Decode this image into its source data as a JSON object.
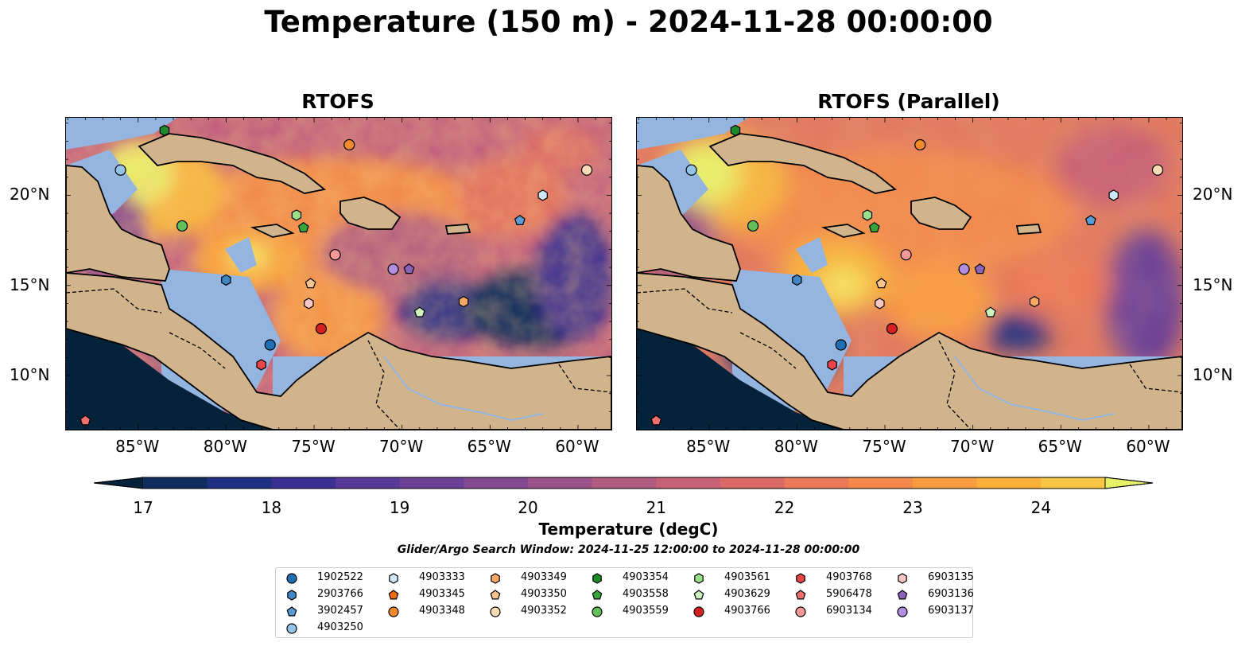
{
  "title": "Temperature (150 m) - 2024-11-28 00:00:00",
  "panels": [
    {
      "title": "RTOFS"
    },
    {
      "title": "RTOFS (Parallel)"
    }
  ],
  "x_ticks": [
    "85°W",
    "80°W",
    "75°W",
    "70°W",
    "65°W",
    "60°W"
  ],
  "y_ticks": [
    "20°N",
    "15°N",
    "10°N"
  ],
  "colorbar": {
    "label": "Temperature (degC)",
    "ticks": [
      "17",
      "18",
      "19",
      "20",
      "21",
      "22",
      "23",
      "24"
    ],
    "colors": [
      "#04233a",
      "#0f2c5e",
      "#1f2f84",
      "#3a2f92",
      "#573a97",
      "#6c4096",
      "#844a91",
      "#9a5389",
      "#b05b80",
      "#c66176",
      "#d96a68",
      "#ea7959",
      "#f4894b",
      "#f99b40",
      "#fbb03d",
      "#f8c646",
      "#e8f06a"
    ]
  },
  "search_window": "Glider/Argo Search Window: 2024-11-25 12:00:00 to 2024-11-28 00:00:00",
  "legend": [
    {
      "id": "1902522",
      "shape": "circle",
      "color": "#1f6fb4"
    },
    {
      "id": "2903766",
      "shape": "hexagon",
      "color": "#3f86c4"
    },
    {
      "id": "3902457",
      "shape": "pentagon",
      "color": "#5a9cd6"
    },
    {
      "id": "4903250",
      "shape": "circle",
      "color": "#94c4ea"
    },
    {
      "id": "4903333",
      "shape": "hexagon",
      "color": "#cfe8f8"
    },
    {
      "id": "4903345",
      "shape": "pentagon",
      "color": "#f06a10"
    },
    {
      "id": "4903348",
      "shape": "circle",
      "color": "#f58a2c"
    },
    {
      "id": "4903349",
      "shape": "hexagon",
      "color": "#f6a864"
    },
    {
      "id": "4903350",
      "shape": "pentagon",
      "color": "#f9c48f"
    },
    {
      "id": "4903352",
      "shape": "circle",
      "color": "#fcdcb6"
    },
    {
      "id": "4903354",
      "shape": "hexagon",
      "color": "#1e8a2a"
    },
    {
      "id": "4903558",
      "shape": "pentagon",
      "color": "#36a53a"
    },
    {
      "id": "4903559",
      "shape": "circle",
      "color": "#62c05a"
    },
    {
      "id": "4903561",
      "shape": "hexagon",
      "color": "#9be08c"
    },
    {
      "id": "4903629",
      "shape": "pentagon",
      "color": "#cdf2bf"
    },
    {
      "id": "4903766",
      "shape": "circle",
      "color": "#d62020"
    },
    {
      "id": "4903768",
      "shape": "hexagon",
      "color": "#e8454a"
    },
    {
      "id": "5906478",
      "shape": "pentagon",
      "color": "#f0706f"
    },
    {
      "id": "6903134",
      "shape": "circle",
      "color": "#f59a98"
    },
    {
      "id": "6903135",
      "shape": "hexagon",
      "color": "#fac6c4"
    },
    {
      "id": "6903136",
      "shape": "pentagon",
      "color": "#8a62b8"
    },
    {
      "id": "6903137",
      "shape": "circle",
      "color": "#b28ee0"
    }
  ],
  "floats": [
    {
      "id": "4903354",
      "lon": -83.5,
      "lat": 23.6
    },
    {
      "id": "4903250",
      "lon": -86.0,
      "lat": 21.4
    },
    {
      "id": "4903348",
      "lon": -73.0,
      "lat": 22.8
    },
    {
      "id": "4903352",
      "lon": -59.5,
      "lat": 21.4
    },
    {
      "id": "4903333",
      "lon": -62.0,
      "lat": 20.0
    },
    {
      "id": "3902457",
      "lon": -63.3,
      "lat": 18.6
    },
    {
      "id": "4903559",
      "lon": -82.5,
      "lat": 18.3
    },
    {
      "id": "4903561",
      "lon": -76.0,
      "lat": 18.9
    },
    {
      "id": "4903558",
      "lon": -75.6,
      "lat": 18.2
    },
    {
      "id": "6903134",
      "lon": -73.8,
      "lat": 16.7
    },
    {
      "id": "6903137",
      "lon": -70.5,
      "lat": 15.9
    },
    {
      "id": "6903136",
      "lon": -69.6,
      "lat": 15.9
    },
    {
      "id": "2903766",
      "lon": -80.0,
      "lat": 15.3
    },
    {
      "id": "4903350",
      "lon": -75.2,
      "lat": 15.1
    },
    {
      "id": "6903135",
      "lon": -75.3,
      "lat": 14.0
    },
    {
      "id": "4903349",
      "lon": -66.5,
      "lat": 14.1
    },
    {
      "id": "4903629",
      "lon": -69.0,
      "lat": 13.5
    },
    {
      "id": "4903766",
      "lon": -74.6,
      "lat": 12.6
    },
    {
      "id": "1902522",
      "lon": -77.5,
      "lat": 11.7
    },
    {
      "id": "4903768",
      "lon": -78.0,
      "lat": 10.6
    },
    {
      "id": "5906478",
      "lon": -88.0,
      "lat": 7.5
    }
  ]
}
